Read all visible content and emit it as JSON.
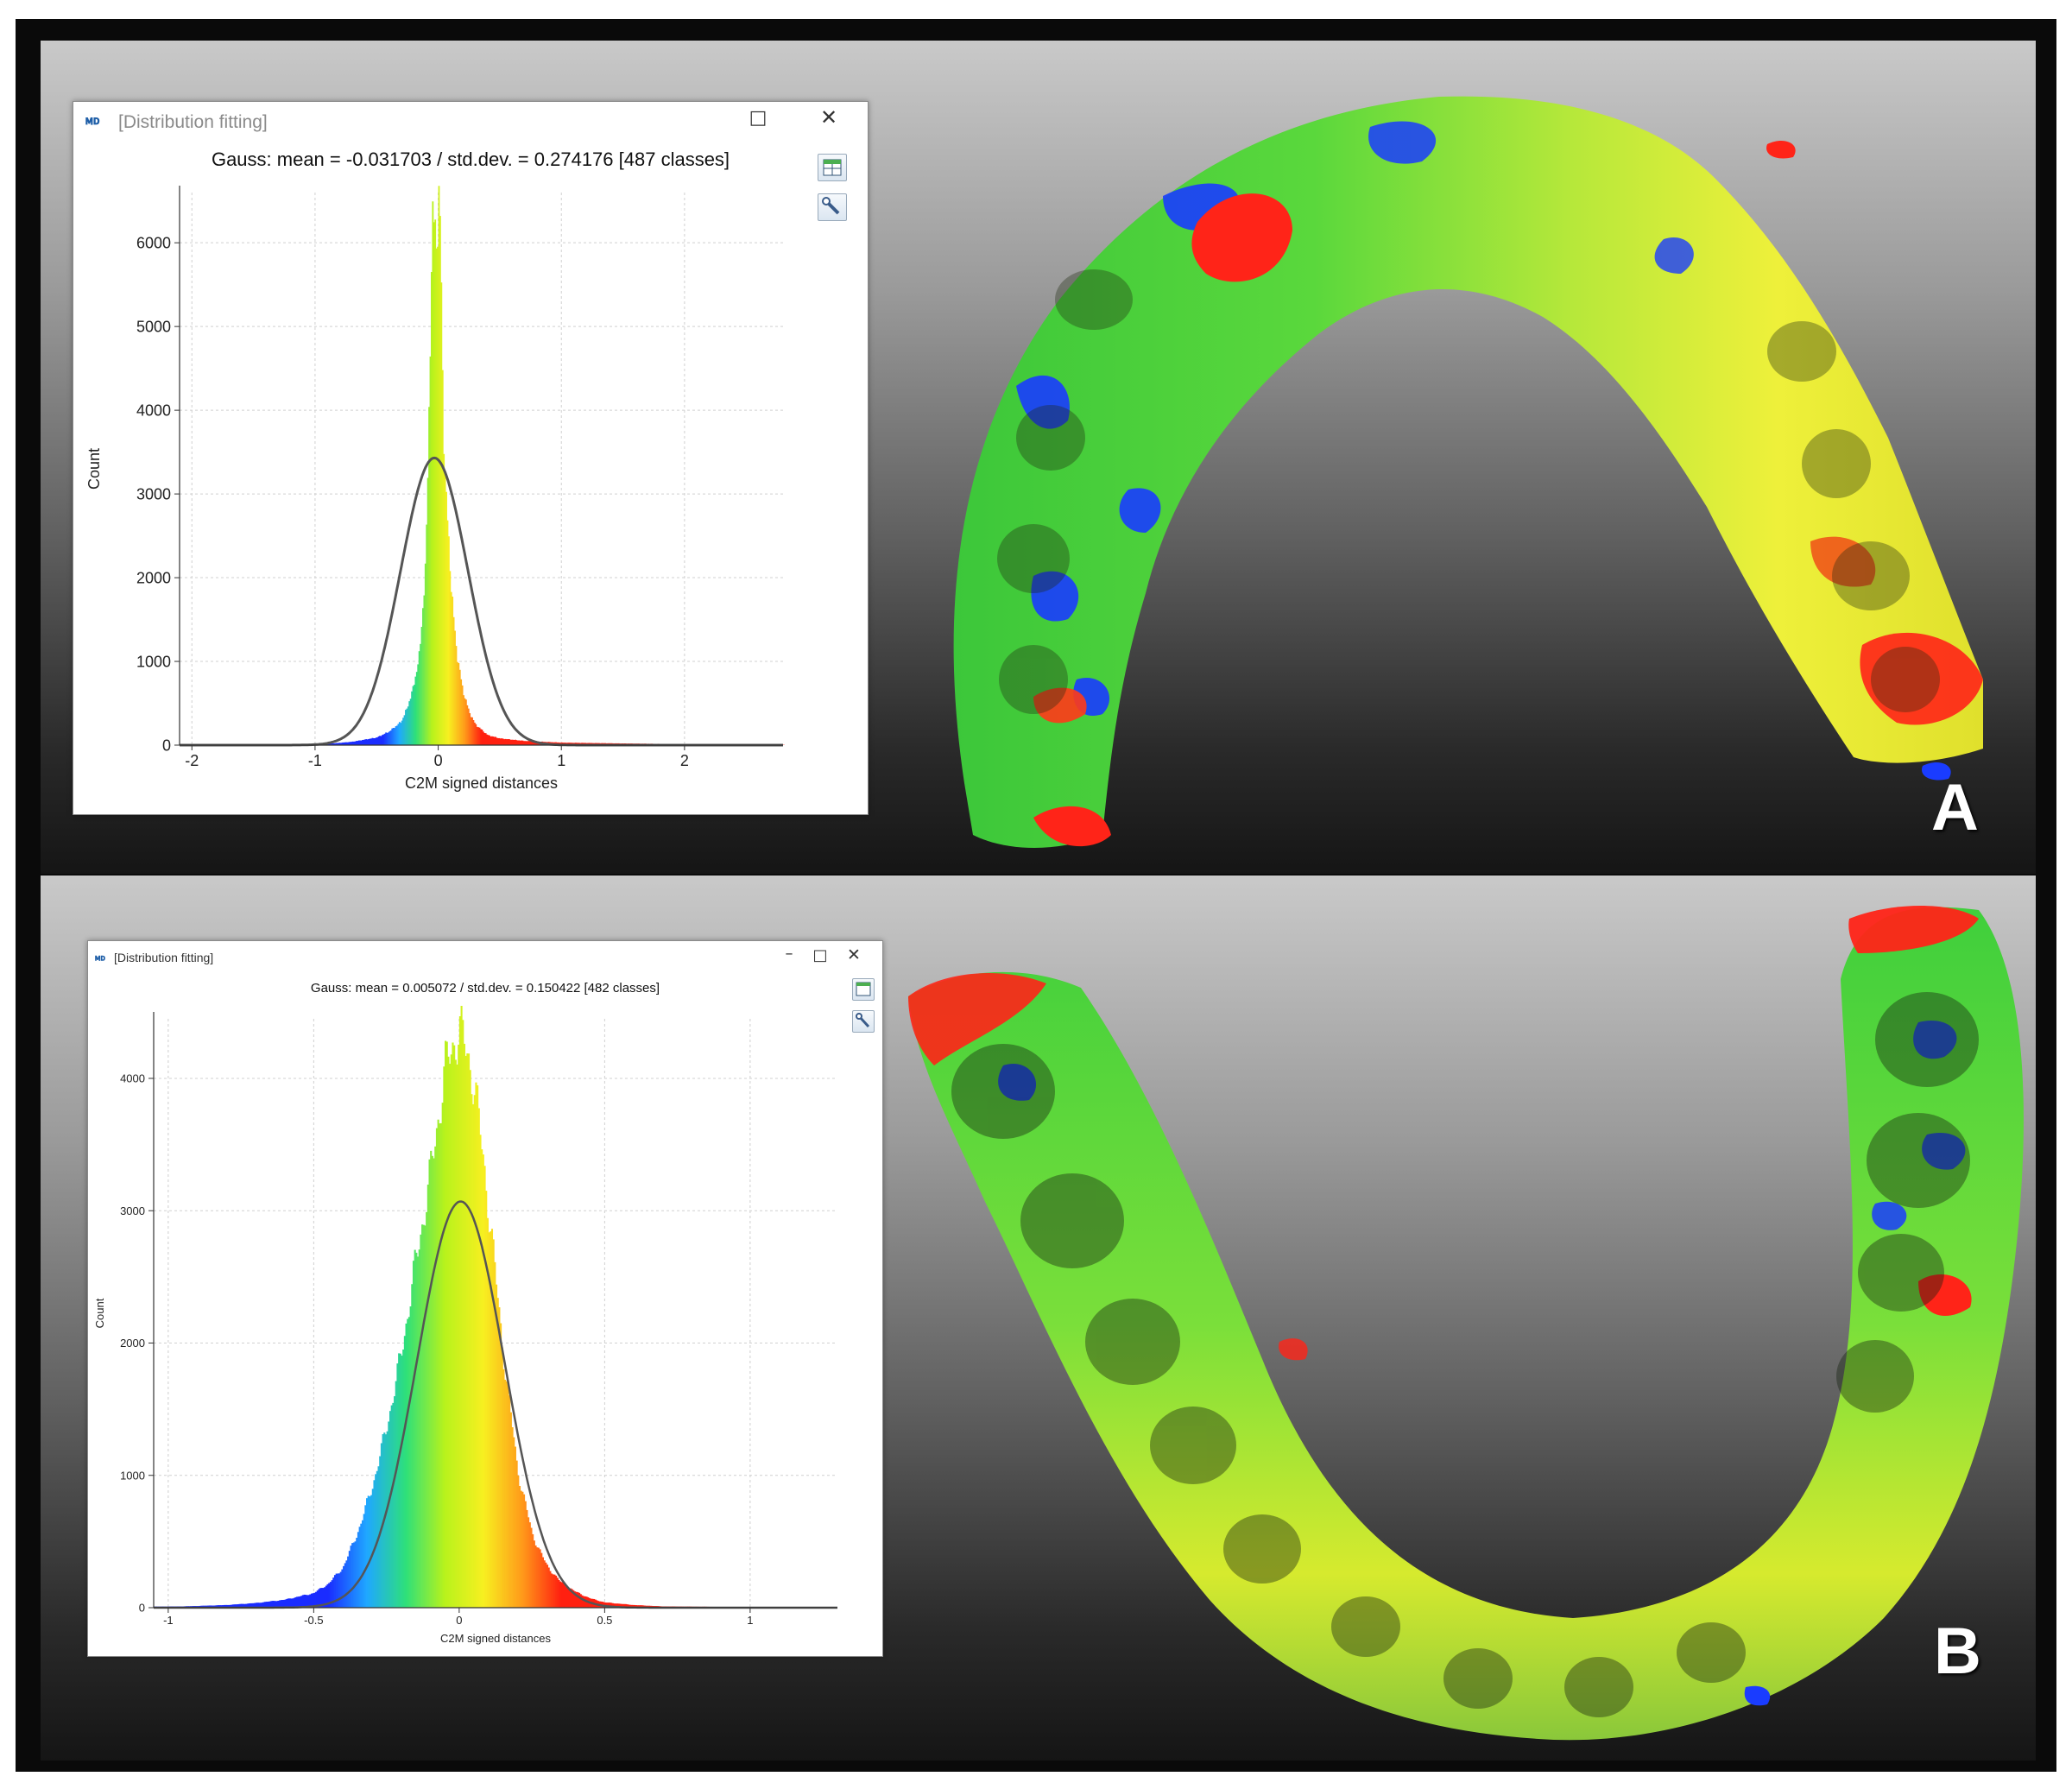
{
  "figure": {
    "panels": [
      {
        "letter": "A",
        "dialog": {
          "title": "[Distribution fitting]",
          "icon": "cloudcompare-icon",
          "controls": [
            "minimize-icon",
            "maximize-icon",
            "close-icon"
          ],
          "tools": [
            "export-table-icon",
            "settings-wrench-icon"
          ]
        },
        "scan_description_colors": {
          "blue": "#1a3cff",
          "green": "#3cd43c",
          "yellow": "#f2f21e",
          "red": "#ff2418"
        }
      },
      {
        "letter": "B",
        "dialog": {
          "title": "[Distribution fitting]",
          "icon": "cloudcompare-icon",
          "controls": [
            "minimize-icon",
            "maximize-icon",
            "close-icon"
          ],
          "tools": [
            "export-table-icon",
            "settings-wrench-icon"
          ]
        }
      }
    ]
  },
  "chart_data": [
    {
      "type": "bar",
      "title": "Gauss: mean = -0.031703 / std.dev. = 0.274176 [487 classes]",
      "xlabel": "C2M signed distances",
      "ylabel": "Count",
      "xlim": [
        -2.1,
        2.8
      ],
      "ylim": [
        0,
        6600
      ],
      "x_ticks": [
        -2,
        -1,
        0,
        1,
        2
      ],
      "x_tick_labels": [
        "-2",
        "-1",
        "0",
        "1",
        "2"
      ],
      "y_ticks": [
        0,
        1000,
        2000,
        3000,
        4000,
        5000,
        6000
      ],
      "y_tick_labels": [
        "0",
        "1000",
        "2000",
        "3000",
        "4000",
        "5000",
        "6000"
      ],
      "grid": true,
      "gauss_fit": {
        "mean": -0.031703,
        "std": 0.274176,
        "peak": 3430
      },
      "histogram": {
        "x": [
          -0.9,
          -0.7,
          -0.5,
          -0.4,
          -0.3,
          -0.25,
          -0.2,
          -0.15,
          -0.1,
          -0.08,
          -0.05,
          -0.03,
          -0.01,
          0.0,
          0.02,
          0.04,
          0.06,
          0.08,
          0.1,
          0.12,
          0.15,
          0.2,
          0.25,
          0.3,
          0.4,
          0.5,
          0.7,
          1.0,
          1.5,
          2.0,
          2.5
        ],
        "counts": [
          15,
          40,
          90,
          160,
          280,
          450,
          700,
          1100,
          2200,
          3600,
          6100,
          6350,
          5950,
          6500,
          6100,
          3900,
          3000,
          2600,
          2000,
          1600,
          1100,
          650,
          400,
          250,
          120,
          80,
          50,
          30,
          20,
          12,
          8
        ],
        "colormap": [
          "#1a2cff",
          "#1fa8ff",
          "#2ee07a",
          "#b8f21c",
          "#f7f020",
          "#ff9a1a",
          "#ff2010"
        ]
      }
    },
    {
      "type": "bar",
      "title": "Gauss: mean = 0.005072 / std.dev. = 0.150422 [482 classes]",
      "xlabel": "C2M signed distances",
      "ylabel": "Count",
      "xlim": [
        -1.05,
        1.3
      ],
      "ylim": [
        0,
        4450
      ],
      "x_ticks": [
        -1,
        -0.5,
        0,
        0.5,
        1
      ],
      "x_tick_labels": [
        "-1",
        "-0.5",
        "0",
        "0.5",
        "1"
      ],
      "y_ticks": [
        0,
        1000,
        2000,
        3000,
        4000
      ],
      "y_tick_labels": [
        "0",
        "1000",
        "2000",
        "3000",
        "4000"
      ],
      "grid": true,
      "gauss_fit": {
        "mean": 0.005072,
        "std": 0.150422,
        "peak": 3070
      },
      "histogram": {
        "x": [
          -0.95,
          -0.8,
          -0.7,
          -0.6,
          -0.5,
          -0.45,
          -0.4,
          -0.35,
          -0.3,
          -0.25,
          -0.2,
          -0.15,
          -0.1,
          -0.05,
          0.0,
          0.05,
          0.1,
          0.15,
          0.2,
          0.25,
          0.3,
          0.35,
          0.4,
          0.45,
          0.5,
          0.6,
          0.7
        ],
        "counts": [
          10,
          20,
          35,
          60,
          110,
          180,
          300,
          560,
          900,
          1350,
          1900,
          2600,
          3250,
          4050,
          4380,
          4000,
          3050,
          1950,
          1050,
          560,
          320,
          190,
          120,
          70,
          40,
          20,
          10
        ],
        "colormap": [
          "#1a2cff",
          "#1fa8ff",
          "#2ee07a",
          "#b8f21c",
          "#f7f020",
          "#ff9a1a",
          "#ff2010"
        ]
      }
    }
  ]
}
